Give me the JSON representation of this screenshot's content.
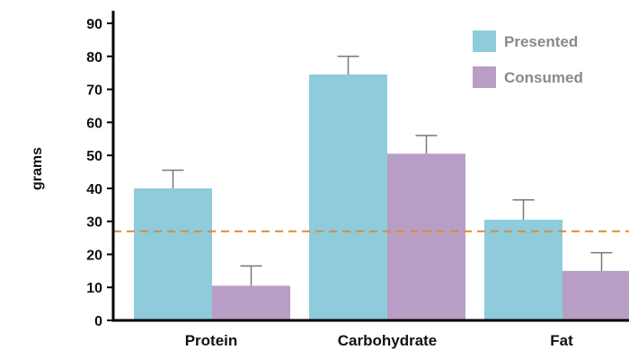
{
  "chart_data": {
    "type": "bar",
    "title": "",
    "xlabel": "",
    "ylabel": "grams",
    "ylim": [
      0,
      90
    ],
    "yticks": [
      0,
      10,
      20,
      30,
      40,
      50,
      60,
      70,
      80,
      90
    ],
    "categories": [
      "Protein",
      "Carbohydrate",
      "Fat"
    ],
    "series": [
      {
        "name": "Presented",
        "color": "#8ecbdb",
        "values": [
          40,
          74.5,
          30.5
        ],
        "error": [
          5.5,
          5.5,
          6
        ]
      },
      {
        "name": "Consumed",
        "color": "#b89ec4",
        "values": [
          10.5,
          50.5,
          15
        ],
        "error": [
          6,
          5.5,
          5.5
        ]
      }
    ],
    "reference_line": {
      "value": 27,
      "color": "#e08a32",
      "style": "dashed"
    },
    "error_bar_color": "#777777",
    "legend": {
      "position": "top-right",
      "text_color": "#8a8a8a"
    },
    "grid": false
  }
}
